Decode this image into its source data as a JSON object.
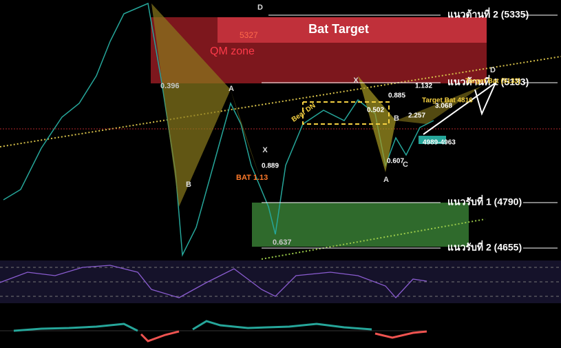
{
  "levels": [
    {
      "label": "แนวต้านที่ 2 (5335)"
    },
    {
      "label": "แนวต้านที่ 1 (5133)"
    },
    {
      "label": "แนวรับที่ 1 (4790)"
    },
    {
      "label": "แนวรับที่ 2 (4655)"
    }
  ],
  "zones": {
    "bat_target": "Bat Target",
    "qm_zone": "QM zone",
    "qm_price": "5327"
  },
  "pattern_right": {
    "x": "X",
    "a": "A",
    "b": "B",
    "c": "C",
    "d": "D",
    "ratios": [
      "0.885",
      "1.132",
      "0.607",
      "2.257",
      "3.068",
      "0.502"
    ],
    "target_1": "Target Bat (5133)",
    "target_2": "Target Bat 4816",
    "range": "4989-4963",
    "bear": "Bear DN"
  },
  "pattern_left": {
    "top_d": "D",
    "ratio_top": "0.396",
    "ratio_bottom": "0.637",
    "a": "A",
    "b": "B",
    "x": "X",
    "bat": "BAT 1.13",
    "ratio_mid": "0.889"
  }
}
